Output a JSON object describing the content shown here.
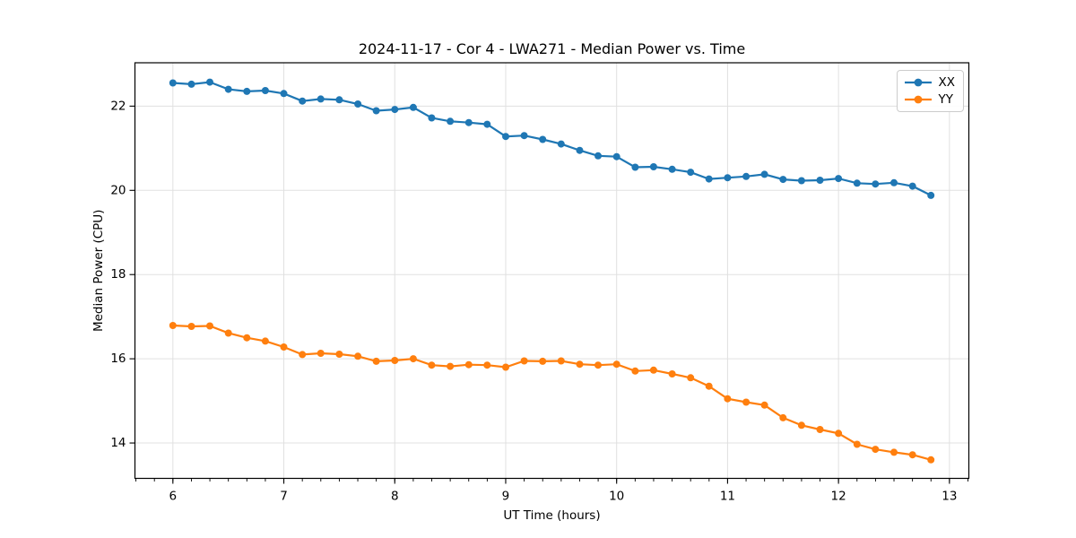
{
  "chart_data": {
    "type": "line",
    "title": "2024-11-17 - Cor 4 - LWA271 - Median Power vs. Time",
    "xlabel": "UT Time (hours)",
    "ylabel": "Median Power (CPU)",
    "xlim": [
      5.658,
      13.175
    ],
    "ylim": [
      13.16,
      23.03
    ],
    "x_ticks": [
      6,
      7,
      8,
      9,
      10,
      11,
      12,
      13
    ],
    "y_ticks": [
      14,
      16,
      18,
      20,
      22
    ],
    "x_minor_interval": 0.16667,
    "grid": true,
    "grid_color": "#e0e0e0",
    "spine_color": "#000000",
    "text_color": "#000000",
    "background_color": "#ffffff",
    "legend_position": "upper right",
    "marker": "circle",
    "x": [
      6.0,
      6.167,
      6.333,
      6.5,
      6.667,
      6.833,
      7.0,
      7.167,
      7.333,
      7.5,
      7.667,
      7.833,
      8.0,
      8.167,
      8.333,
      8.5,
      8.667,
      8.833,
      9.0,
      9.167,
      9.333,
      9.5,
      9.667,
      9.833,
      10.0,
      10.167,
      10.333,
      10.5,
      10.667,
      10.833,
      11.0,
      11.167,
      11.333,
      11.5,
      11.667,
      11.833,
      12.0,
      12.167,
      12.333,
      12.5,
      12.667,
      12.833
    ],
    "series": [
      {
        "name": "XX",
        "color": "#1f77b4",
        "values": [
          22.55,
          22.52,
          22.57,
          22.4,
          22.35,
          22.37,
          22.3,
          22.12,
          22.17,
          22.15,
          22.05,
          21.89,
          21.92,
          21.97,
          21.72,
          21.64,
          21.61,
          21.57,
          21.28,
          21.3,
          21.21,
          21.1,
          20.95,
          20.82,
          20.8,
          20.55,
          20.56,
          20.5,
          20.43,
          20.27,
          20.3,
          20.33,
          20.38,
          20.26,
          20.23,
          20.24,
          20.28,
          20.17,
          20.15,
          20.18,
          20.1,
          19.88
        ]
      },
      {
        "name": "YY",
        "color": "#ff7f0e",
        "values": [
          16.79,
          16.77,
          16.78,
          16.61,
          16.5,
          16.42,
          16.28,
          16.1,
          16.13,
          16.11,
          16.06,
          15.94,
          15.96,
          16.0,
          15.85,
          15.82,
          15.86,
          15.85,
          15.8,
          15.95,
          15.94,
          15.95,
          15.87,
          15.85,
          15.87,
          15.71,
          15.73,
          15.64,
          15.55,
          15.35,
          15.05,
          14.97,
          14.9,
          14.6,
          14.42,
          14.32,
          14.23,
          13.97,
          13.85,
          13.78,
          13.72,
          13.6
        ]
      }
    ]
  }
}
